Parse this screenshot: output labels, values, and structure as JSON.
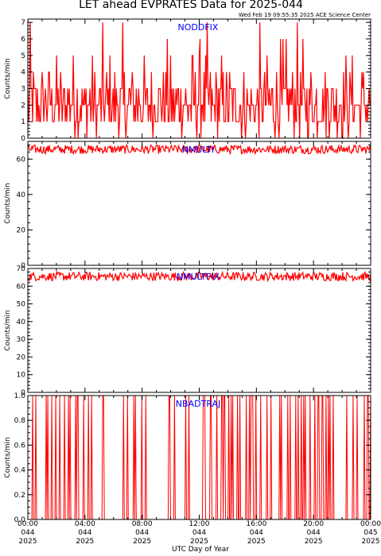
{
  "page": {
    "title": "LET ahead EVPRATES Data for 2025-044",
    "timestamp": "Wed Feb 19 09:55:35 2025 ACE Science Center"
  },
  "colors": {
    "series": "#ff0000",
    "label": "#0000ff",
    "axes": "#000000",
    "background": "#ffffff"
  },
  "chart_data": [
    {
      "type": "line",
      "panel_label": "NODDFIX",
      "ylabel": "Counts/min",
      "ylim": [
        0,
        7.2
      ],
      "yticks": [
        0,
        1,
        2,
        3,
        4,
        5,
        6,
        7
      ],
      "ytick_labels": [
        "0",
        "1",
        "2",
        "3",
        "4",
        "5",
        "6",
        "7"
      ],
      "description": "Noisy count rate fluctuating mostly between 1 and 3 counts/min, frequent spikes to 4-5 and occasional 6-7, dips to 0",
      "series": [
        {
          "values_range": [
            0,
            7
          ],
          "typical": [
            1,
            3
          ]
        }
      ]
    },
    {
      "type": "line",
      "panel_label": "NMULTI",
      "ylabel": "Counts/min",
      "ylim": [
        0,
        70
      ],
      "yticks": [
        0,
        20,
        40,
        60
      ],
      "ytick_labels": [
        "0",
        "20",
        "40",
        "60"
      ],
      "description": "Dense band of values between roughly 63 and 68 counts/min",
      "series": [
        {
          "values_range": [
            63,
            68
          ],
          "typical": [
            64,
            67
          ]
        }
      ]
    },
    {
      "type": "line",
      "panel_label": "NMULTFIX",
      "ylabel": "Counts/min",
      "ylim": [
        0,
        70
      ],
      "yticks": [
        0,
        10,
        20,
        30,
        40,
        50,
        60,
        70
      ],
      "ytick_labels": [
        "0",
        "10",
        "20",
        "30",
        "40",
        "50",
        "60",
        "70"
      ],
      "description": "Dense band of values between roughly 63 and 68 counts/min",
      "series": [
        {
          "values_range": [
            63,
            68
          ],
          "typical": [
            64,
            67
          ]
        }
      ]
    },
    {
      "type": "line",
      "panel_label": "NBADTRAJ",
      "ylabel": "Counts/min",
      "ylim": [
        0,
        1.0
      ],
      "yticks": [
        0,
        0.2,
        0.4,
        0.6,
        0.8,
        1.0
      ],
      "ytick_labels": [
        "0.0",
        "0.2",
        "0.4",
        "0.6",
        "0.8",
        "1.0"
      ],
      "description": "Mostly 0 with many sporadic full-height pulses to 1.0 counts/min",
      "series": [
        {
          "values_range": [
            0,
            1
          ],
          "typical": [
            0,
            0
          ]
        }
      ]
    }
  ],
  "x_axis": {
    "title": "UTC Day of Year",
    "xlim_hours": [
      0,
      24
    ],
    "ticks": [
      {
        "hour": 0,
        "time": "00:00",
        "doy": "044",
        "year": "2025"
      },
      {
        "hour": 4,
        "time": "04:00",
        "doy": "044",
        "year": "2025"
      },
      {
        "hour": 8,
        "time": "08:00",
        "doy": "044",
        "year": "2025"
      },
      {
        "hour": 12,
        "time": "12:00",
        "doy": "044",
        "year": "2025"
      },
      {
        "hour": 16,
        "time": "16:00",
        "doy": "044",
        "year": "2025"
      },
      {
        "hour": 20,
        "time": "20:00",
        "doy": "044",
        "year": "2025"
      },
      {
        "hour": 24,
        "time": "00:00",
        "doy": "045",
        "year": "2025"
      }
    ]
  }
}
